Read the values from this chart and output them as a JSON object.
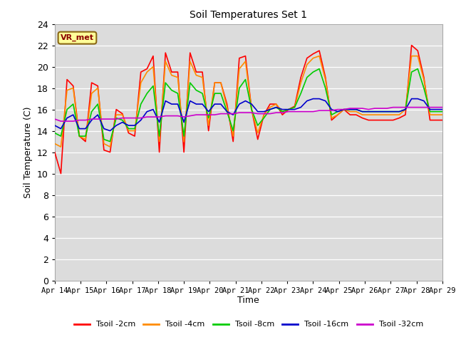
{
  "title": "Soil Temperatures Set 1",
  "xlabel": "Time",
  "ylabel": "Soil Temperature (C)",
  "ylim": [
    0,
    24
  ],
  "yticks": [
    0,
    2,
    4,
    6,
    8,
    10,
    12,
    14,
    16,
    18,
    20,
    22,
    24
  ],
  "xtick_labels": [
    "Apr 14",
    "Apr 15",
    "Apr 16",
    "Apr 17",
    "Apr 18",
    "Apr 19",
    "Apr 20",
    "Apr 21",
    "Apr 22",
    "Apr 23",
    "Apr 24",
    "Apr 25",
    "Apr 26",
    "Apr 27",
    "Apr 28",
    "Apr 29"
  ],
  "annotation_text": "VR_met",
  "annotation_color": "#8B0000",
  "series_colors": [
    "#FF0000",
    "#FF8C00",
    "#00CC00",
    "#0000CC",
    "#CC00CC"
  ],
  "series_labels": [
    "Tsoil -2cm",
    "Tsoil -4cm",
    "Tsoil -8cm",
    "Tsoil -16cm",
    "Tsoil -32cm"
  ],
  "bg_color": "#DCDCDC",
  "line_width": 1.2,
  "t2cm": [
    12.0,
    10.0,
    18.8,
    18.2,
    13.5,
    13.0,
    18.5,
    18.2,
    12.2,
    12.0,
    16.0,
    15.6,
    13.8,
    13.5,
    19.5,
    19.8,
    21.0,
    12.0,
    21.3,
    19.5,
    19.5,
    12.0,
    21.3,
    19.5,
    19.5,
    14.0,
    18.5,
    18.5,
    16.5,
    13.0,
    20.8,
    21.0,
    16.0,
    13.2,
    15.5,
    16.5,
    16.5,
    15.5,
    16.0,
    16.3,
    19.0,
    20.8,
    21.2,
    21.5,
    19.0,
    15.0,
    15.5,
    16.0,
    15.5,
    15.5,
    15.2,
    15.0,
    15.0,
    15.0,
    15.0,
    15.0,
    15.2,
    15.5,
    22.0,
    21.5,
    19.0,
    15.0,
    15.0,
    15.0
  ],
  "t4cm": [
    12.8,
    12.5,
    17.8,
    18.0,
    13.5,
    13.2,
    17.5,
    18.0,
    12.8,
    12.5,
    15.5,
    15.5,
    14.0,
    14.0,
    18.5,
    19.5,
    20.0,
    13.0,
    20.5,
    19.2,
    19.0,
    13.0,
    20.5,
    19.2,
    19.0,
    14.5,
    18.5,
    18.5,
    16.2,
    13.5,
    19.8,
    20.5,
    16.0,
    13.8,
    15.5,
    16.2,
    16.5,
    15.8,
    16.0,
    16.2,
    18.5,
    20.2,
    20.8,
    21.0,
    18.8,
    15.2,
    15.5,
    16.0,
    15.8,
    15.8,
    15.5,
    15.5,
    15.5,
    15.5,
    15.5,
    15.5,
    15.5,
    16.0,
    21.0,
    21.0,
    18.8,
    15.5,
    15.5,
    15.5
  ],
  "t8cm": [
    13.8,
    13.5,
    16.0,
    16.5,
    13.5,
    13.5,
    15.8,
    16.5,
    13.2,
    13.0,
    15.2,
    15.0,
    14.2,
    14.2,
    16.5,
    17.5,
    18.2,
    13.5,
    18.5,
    17.8,
    17.5,
    13.5,
    18.5,
    17.8,
    17.5,
    15.2,
    17.5,
    17.5,
    15.8,
    14.0,
    18.0,
    18.8,
    16.0,
    14.5,
    15.2,
    16.0,
    16.2,
    15.8,
    16.0,
    16.2,
    17.5,
    19.0,
    19.5,
    19.8,
    18.0,
    15.5,
    15.8,
    16.0,
    16.0,
    16.0,
    15.8,
    15.8,
    15.8,
    15.8,
    15.8,
    15.8,
    15.8,
    16.0,
    19.5,
    19.8,
    18.0,
    15.8,
    15.8,
    15.8
  ],
  "t16cm": [
    14.5,
    14.2,
    15.2,
    15.5,
    14.2,
    14.2,
    15.0,
    15.5,
    14.2,
    14.0,
    14.5,
    14.8,
    14.5,
    14.5,
    15.0,
    15.8,
    16.0,
    14.8,
    16.8,
    16.5,
    16.5,
    14.8,
    16.8,
    16.5,
    16.5,
    15.8,
    16.5,
    16.5,
    15.8,
    15.5,
    16.5,
    16.8,
    16.5,
    15.8,
    15.8,
    16.0,
    16.2,
    16.0,
    16.0,
    16.0,
    16.2,
    16.8,
    17.0,
    17.0,
    16.8,
    16.0,
    15.8,
    16.0,
    16.0,
    16.0,
    15.8,
    15.8,
    15.8,
    15.8,
    15.8,
    15.8,
    15.8,
    16.0,
    17.0,
    17.0,
    16.8,
    16.0,
    16.0,
    16.0
  ],
  "t32cm": [
    15.1,
    14.9,
    14.9,
    14.9,
    15.0,
    15.0,
    15.1,
    15.1,
    15.1,
    15.1,
    15.1,
    15.2,
    15.2,
    15.2,
    15.2,
    15.3,
    15.3,
    15.3,
    15.4,
    15.4,
    15.4,
    15.3,
    15.4,
    15.5,
    15.5,
    15.5,
    15.5,
    15.6,
    15.6,
    15.6,
    15.7,
    15.7,
    15.7,
    15.6,
    15.6,
    15.6,
    15.7,
    15.7,
    15.8,
    15.8,
    15.8,
    15.8,
    15.8,
    15.9,
    15.9,
    15.9,
    16.0,
    16.0,
    16.1,
    16.1,
    16.1,
    16.0,
    16.1,
    16.1,
    16.1,
    16.2,
    16.2,
    16.2,
    16.2,
    16.2,
    16.2,
    16.2,
    16.2,
    16.2
  ]
}
